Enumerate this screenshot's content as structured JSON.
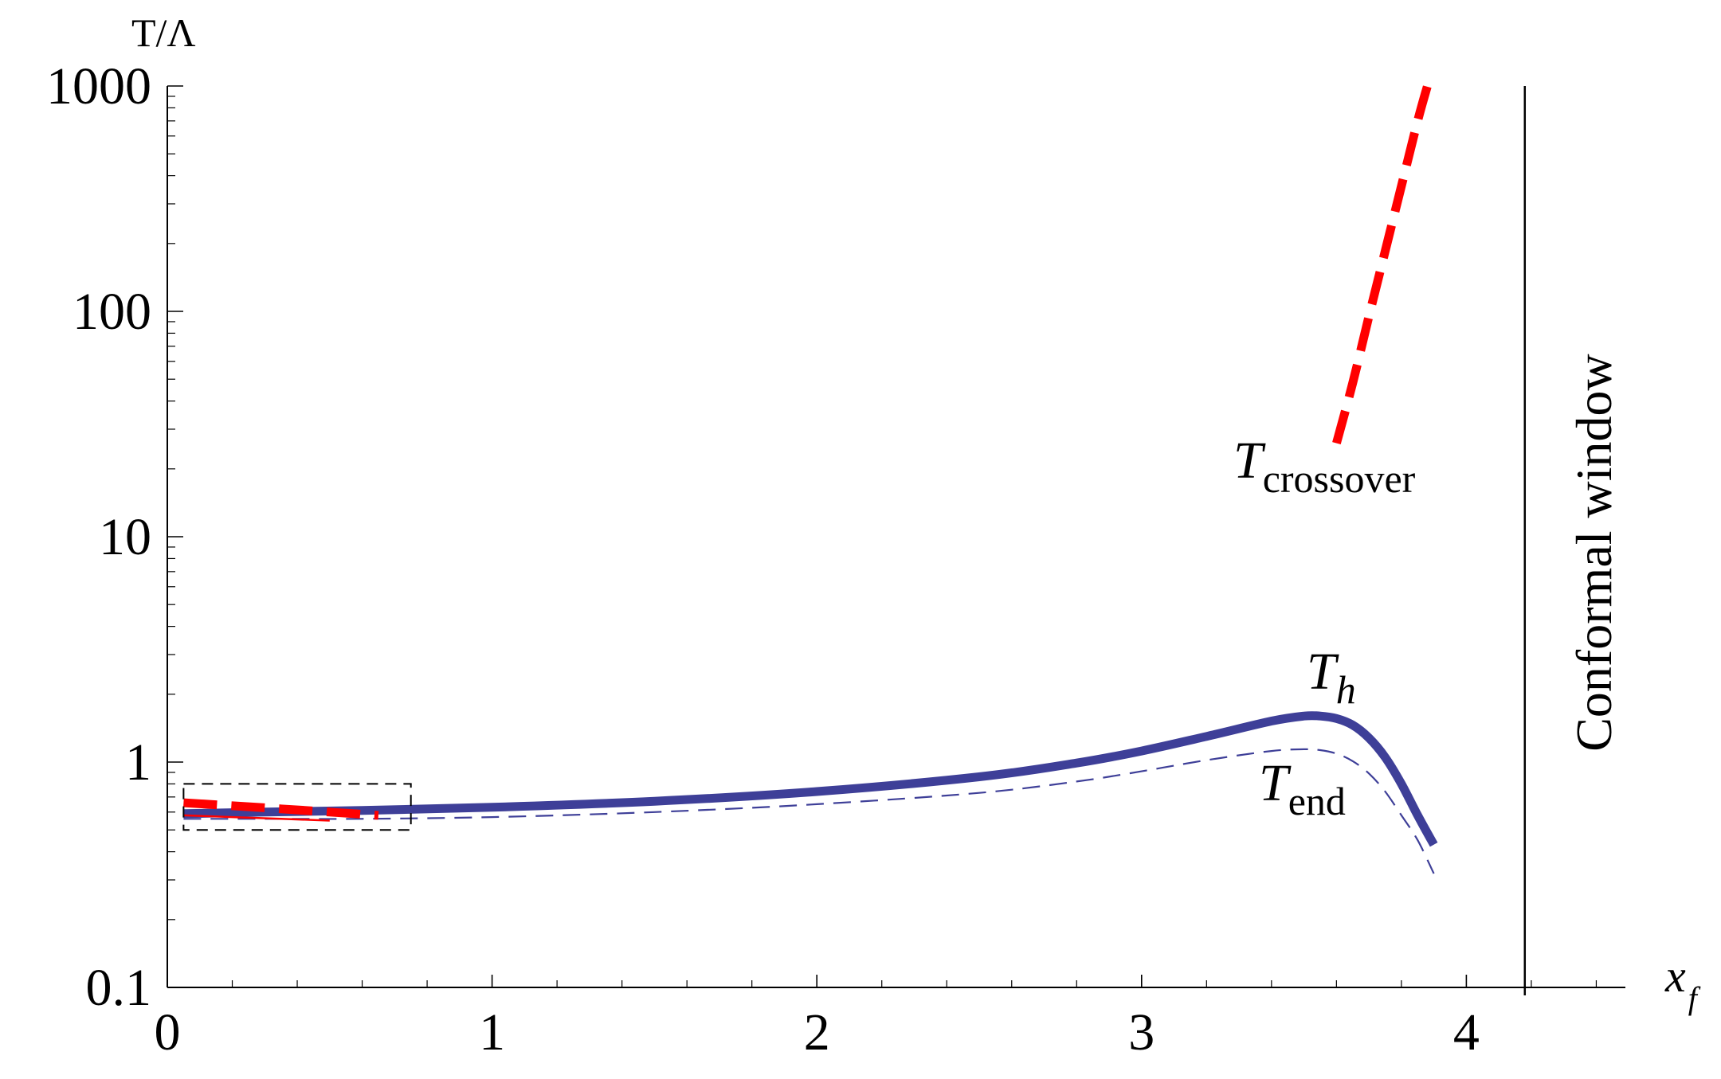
{
  "chart_data": {
    "type": "line",
    "title": "",
    "xlabel": "x",
    "xlabel_sub": "f",
    "ylabel": "T/Λ",
    "xlim": [
      0,
      4.5
    ],
    "ylim": [
      0.1,
      1000
    ],
    "yscale": "log",
    "grid": false,
    "legend": "none",
    "x_ticks": [
      "0",
      "1",
      "2",
      "3",
      "4"
    ],
    "y_ticks": [
      "0.1",
      "1",
      "10",
      "100",
      "1000"
    ],
    "series": [
      {
        "label_main": "T",
        "label_sub": "h",
        "color": "#3e3f98",
        "style": "thick-solid",
        "x": [
          0.05,
          0.3,
          0.6,
          1.0,
          1.5,
          2.0,
          2.5,
          2.8,
          3.0,
          3.2,
          3.4,
          3.5,
          3.55,
          3.6,
          3.65,
          3.7,
          3.75,
          3.8,
          3.85,
          3.9
        ],
        "y": [
          0.59,
          0.6,
          0.61,
          0.63,
          0.67,
          0.74,
          0.86,
          0.99,
          1.12,
          1.3,
          1.52,
          1.6,
          1.6,
          1.56,
          1.46,
          1.28,
          1.05,
          0.8,
          0.58,
          0.43
        ]
      },
      {
        "label_main": "T",
        "label_sub": "end",
        "color": "#3e3f98",
        "style": "thin-dashed",
        "x": [
          0.05,
          0.3,
          0.6,
          1.0,
          1.5,
          2.0,
          2.5,
          2.8,
          3.0,
          3.2,
          3.4,
          3.5,
          3.55,
          3.6,
          3.65,
          3.7,
          3.75,
          3.8,
          3.85,
          3.9
        ],
        "y": [
          0.56,
          0.56,
          0.56,
          0.57,
          0.6,
          0.65,
          0.73,
          0.82,
          0.91,
          1.02,
          1.12,
          1.14,
          1.13,
          1.09,
          1.01,
          0.89,
          0.74,
          0.58,
          0.45,
          0.32
        ]
      },
      {
        "label_main": "T",
        "label_sub": "crossover",
        "color": "#ff0000",
        "style": "thick-dashed",
        "x": [
          3.6,
          3.65,
          3.7,
          3.75,
          3.8,
          3.85,
          3.88
        ],
        "y": [
          26,
          48,
          95,
          185,
          360,
          700,
          1000
        ]
      },
      {
        "label_main": "",
        "label_sub": "",
        "color": "#ff0000",
        "style": "thick-dashed",
        "x": [
          0.05,
          0.2,
          0.35,
          0.5,
          0.65
        ],
        "y": [
          0.66,
          0.64,
          0.62,
          0.6,
          0.58
        ]
      },
      {
        "label_main": "",
        "label_sub": "",
        "color": "#ff0000",
        "style": "thin-solid",
        "x": [
          0.05,
          0.2,
          0.35,
          0.5
        ],
        "y": [
          0.58,
          0.57,
          0.56,
          0.55
        ]
      }
    ],
    "annotations": {
      "region_label": "Conformal window",
      "boundary_x": 4.18,
      "zoom_box": {
        "x": [
          0.05,
          0.75
        ],
        "y": [
          0.5,
          0.8
        ]
      }
    }
  }
}
